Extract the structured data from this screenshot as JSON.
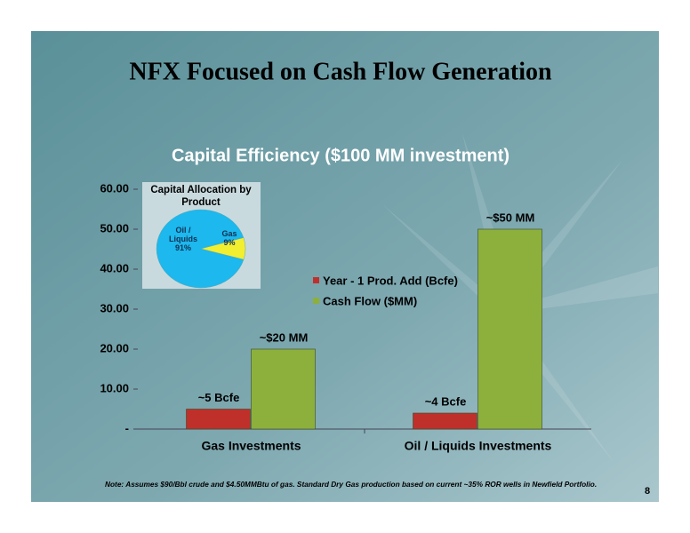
{
  "slide": {
    "title": "NFX Focused on Cash Flow Generation",
    "note": "Note: Assumes $90/Bbl crude and $4.50MMBtu of gas. Standard Dry Gas production based on current ~35% ROR wells in Newfield Portfolio.",
    "page_number": "8"
  },
  "chart_data": [
    {
      "type": "bar",
      "title": "Capital Efficiency ($100 MM investment)",
      "categories": [
        "Gas Investments",
        "Oil / Liquids Investments"
      ],
      "series": [
        {
          "name": "Year - 1 Prod. Add (Bcfe)",
          "color": "#c0302a",
          "values": [
            5,
            4
          ],
          "value_labels": [
            "~5 Bcfe",
            "~4 Bcfe"
          ]
        },
        {
          "name": "Cash Flow ($MM)",
          "color": "#8db03c",
          "values": [
            20,
            50
          ],
          "value_labels": [
            "~$20 MM",
            "~$50 MM"
          ]
        }
      ],
      "ylim": [
        0,
        60
      ],
      "yticks": [
        {
          "value": 0,
          "label": "-"
        },
        {
          "value": 10,
          "label": "10.00"
        },
        {
          "value": 20,
          "label": "20.00"
        },
        {
          "value": 30,
          "label": "30.00"
        },
        {
          "value": 40,
          "label": "40.00"
        },
        {
          "value": 50,
          "label": "50.00"
        },
        {
          "value": 60,
          "label": "60.00"
        }
      ]
    },
    {
      "type": "pie",
      "title": "Capital Allocation by Product",
      "categories": [
        "Oil / Liquids",
        "Gas"
      ],
      "values": [
        91,
        9
      ],
      "value_labels": [
        "91%",
        "9%"
      ],
      "colors": [
        "#1cb8ee",
        "#f2ee30"
      ]
    }
  ]
}
